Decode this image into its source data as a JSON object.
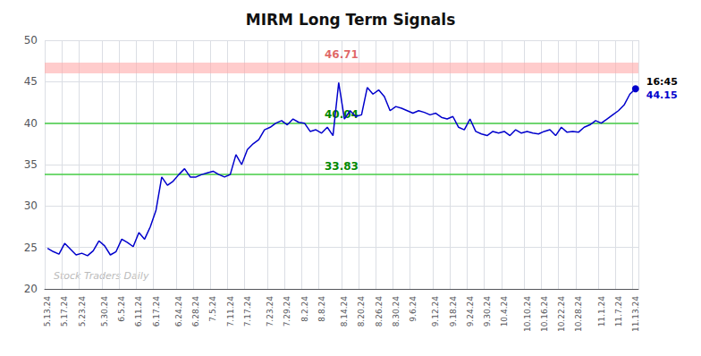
{
  "chart_data": {
    "type": "line",
    "title": "MIRM Long Term Signals",
    "color": "#0000cc",
    "grid": true,
    "ylim": [
      20,
      50
    ],
    "yticks": [
      20,
      25,
      30,
      35,
      40,
      45,
      50
    ],
    "categories": [
      "5.13.24",
      null,
      null,
      "5.17.24",
      null,
      null,
      "5.23.24",
      null,
      null,
      null,
      "5.30.24",
      null,
      null,
      "6.5.24",
      null,
      null,
      "6.11.24",
      null,
      null,
      "6.17.24",
      null,
      null,
      null,
      "6.24.24",
      null,
      null,
      "6.28.24",
      null,
      null,
      "7.5.24",
      null,
      null,
      "7.11.24",
      null,
      null,
      "7.17.24",
      null,
      null,
      null,
      "7.23.24",
      null,
      null,
      "7.29.24",
      null,
      null,
      "8.2.24",
      null,
      null,
      "8.8.24",
      null,
      null,
      null,
      "8.14.24",
      null,
      null,
      "8.20.24",
      null,
      null,
      "8.26.24",
      null,
      null,
      "8.30.24",
      null,
      null,
      "9.6.24",
      null,
      null,
      null,
      "9.12.24",
      null,
      null,
      "9.18.24",
      null,
      null,
      "9.24.24",
      null,
      null,
      "9.30.24",
      null,
      null,
      "10.4.24",
      null,
      null,
      null,
      "10.10.24",
      null,
      null,
      "10.16.24",
      null,
      null,
      "10.22.24",
      null,
      null,
      "10.28.24",
      null,
      null,
      null,
      "11.1.24",
      null,
      null,
      "11.7.24",
      null,
      null,
      "11.13.24"
    ],
    "values": [
      24.9,
      24.5,
      24.2,
      25.5,
      24.8,
      24.1,
      24.3,
      24.0,
      24.6,
      25.8,
      25.2,
      24.1,
      24.5,
      26.0,
      25.6,
      25.1,
      26.8,
      26.0,
      27.5,
      29.5,
      33.5,
      32.5,
      33.0,
      33.8,
      34.5,
      33.5,
      33.5,
      33.8,
      34.0,
      34.2,
      33.8,
      33.5,
      33.8,
      36.2,
      35.0,
      36.8,
      37.5,
      38.0,
      39.2,
      39.5,
      40.0,
      40.3,
      39.8,
      40.5,
      40.1,
      40.0,
      39.0,
      39.2,
      38.8,
      39.5,
      38.5,
      44.9,
      40.5,
      41.5,
      40.8,
      41.0,
      44.3,
      43.5,
      44.0,
      43.2,
      41.5,
      42.0,
      41.8,
      41.5,
      41.2,
      41.5,
      41.3,
      41.0,
      41.2,
      40.7,
      40.5,
      40.8,
      39.5,
      39.2,
      40.5,
      39.0,
      38.7,
      38.5,
      39.0,
      38.8,
      39.0,
      38.5,
      39.2,
      38.8,
      39.0,
      38.8,
      38.7,
      39.0,
      39.2,
      38.5,
      39.5,
      38.9,
      39.0,
      38.9,
      39.5,
      39.8,
      40.3,
      40.0,
      40.5,
      41.0,
      41.5,
      42.2,
      43.5,
      44.15
    ],
    "reference_lines": [
      {
        "y": 46.71,
        "color": "#ffaaaa",
        "label": "46.71",
        "label_color": "#cc0000"
      },
      {
        "y": 40.04,
        "color": "#44cc44",
        "label": "40.04",
        "label_color": "#008800"
      },
      {
        "y": 33.83,
        "color": "#44cc44",
        "label": "33.83",
        "label_color": "#008800"
      }
    ],
    "end_point": {
      "color": "#0000cc",
      "labels": [
        {
          "text": "16:45",
          "color": "#000000"
        },
        {
          "text": "44.15",
          "color": "#0000cc"
        }
      ]
    },
    "watermark": {
      "text": "Stock Traders Daily",
      "color": "#bbbbbb"
    }
  }
}
